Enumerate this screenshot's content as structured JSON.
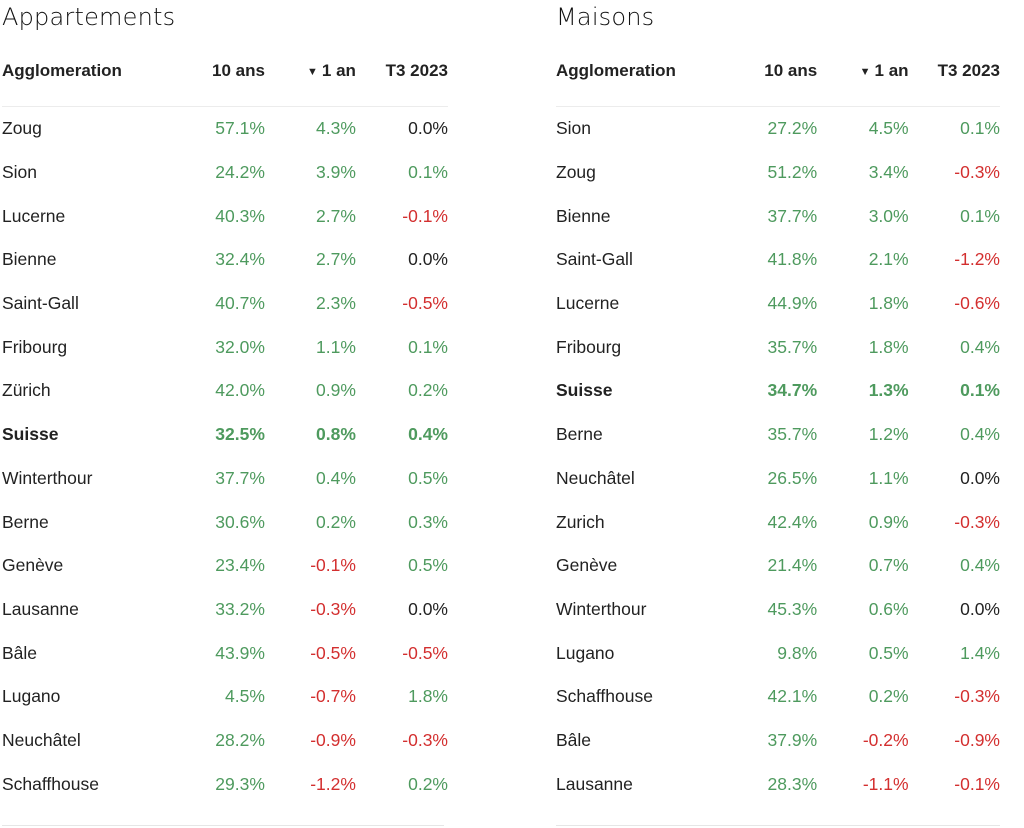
{
  "columns": [
    "Agglomeration",
    "10 ans",
    "1 an",
    "T3 2023"
  ],
  "sort_indicator": "▼",
  "colors": {
    "positive": "#4e9a5e",
    "negative": "#d32f2f",
    "zero": "#222222"
  },
  "left": {
    "title": "Appartements",
    "rows": [
      {
        "name": "Zoug",
        "v10": "57.1%",
        "v1": "4.3%",
        "t3": "0.0%"
      },
      {
        "name": "Sion",
        "v10": "24.2%",
        "v1": "3.9%",
        "t3": "0.1%"
      },
      {
        "name": "Lucerne",
        "v10": "40.3%",
        "v1": "2.7%",
        "t3": "-0.1%"
      },
      {
        "name": "Bienne",
        "v10": "32.4%",
        "v1": "2.7%",
        "t3": "0.0%"
      },
      {
        "name": "Saint-Gall",
        "v10": "40.7%",
        "v1": "2.3%",
        "t3": "-0.5%"
      },
      {
        "name": "Fribourg",
        "v10": "32.0%",
        "v1": "1.1%",
        "t3": "0.1%"
      },
      {
        "name": "Zürich",
        "v10": "42.0%",
        "v1": "0.9%",
        "t3": "0.2%"
      },
      {
        "name": "Suisse",
        "v10": "32.5%",
        "v1": "0.8%",
        "t3": "0.4%",
        "bold": true
      },
      {
        "name": "Winterthour",
        "v10": "37.7%",
        "v1": "0.4%",
        "t3": "0.5%"
      },
      {
        "name": "Berne",
        "v10": "30.6%",
        "v1": "0.2%",
        "t3": "0.3%"
      },
      {
        "name": "Genève",
        "v10": "23.4%",
        "v1": "-0.1%",
        "t3": "0.5%"
      },
      {
        "name": "Lausanne",
        "v10": "33.2%",
        "v1": "-0.3%",
        "t3": "0.0%"
      },
      {
        "name": "Bâle",
        "v10": "43.9%",
        "v1": "-0.5%",
        "t3": "-0.5%"
      },
      {
        "name": "Lugano",
        "v10": "4.5%",
        "v1": "-0.7%",
        "t3": "1.8%"
      },
      {
        "name": "Neuchâtel",
        "v10": "28.2%",
        "v1": "-0.9%",
        "t3": "-0.3%"
      },
      {
        "name": "Schaffhouse",
        "v10": "29.3%",
        "v1": "-1.2%",
        "t3": "0.2%"
      }
    ]
  },
  "right": {
    "title": "Maisons",
    "rows": [
      {
        "name": "Sion",
        "v10": "27.2%",
        "v1": "4.5%",
        "t3": "0.1%"
      },
      {
        "name": "Zoug",
        "v10": "51.2%",
        "v1": "3.4%",
        "t3": "-0.3%"
      },
      {
        "name": "Bienne",
        "v10": "37.7%",
        "v1": "3.0%",
        "t3": "0.1%"
      },
      {
        "name": "Saint-Gall",
        "v10": "41.8%",
        "v1": "2.1%",
        "t3": "-1.2%"
      },
      {
        "name": "Lucerne",
        "v10": "44.9%",
        "v1": "1.8%",
        "t3": "-0.6%"
      },
      {
        "name": "Fribourg",
        "v10": "35.7%",
        "v1": "1.8%",
        "t3": "0.4%"
      },
      {
        "name": "Suisse",
        "v10": "34.7%",
        "v1": "1.3%",
        "t3": "0.1%",
        "bold": true
      },
      {
        "name": "Berne",
        "v10": "35.7%",
        "v1": "1.2%",
        "t3": "0.4%"
      },
      {
        "name": "Neuchâtel",
        "v10": "26.5%",
        "v1": "1.1%",
        "t3": "0.0%"
      },
      {
        "name": "Zurich",
        "v10": "42.4%",
        "v1": "0.9%",
        "t3": "-0.3%"
      },
      {
        "name": "Genève",
        "v10": "21.4%",
        "v1": "0.7%",
        "t3": "0.4%"
      },
      {
        "name": "Winterthour",
        "v10": "45.3%",
        "v1": "0.6%",
        "t3": "0.0%"
      },
      {
        "name": "Lugano",
        "v10": "9.8%",
        "v1": "0.5%",
        "t3": "1.4%"
      },
      {
        "name": "Schaffhouse",
        "v10": "42.1%",
        "v1": "0.2%",
        "t3": "-0.3%"
      },
      {
        "name": "Bâle",
        "v10": "37.9%",
        "v1": "-0.2%",
        "t3": "-0.9%"
      },
      {
        "name": "Lausanne",
        "v10": "28.3%",
        "v1": "-1.1%",
        "t3": "-0.1%"
      }
    ]
  }
}
